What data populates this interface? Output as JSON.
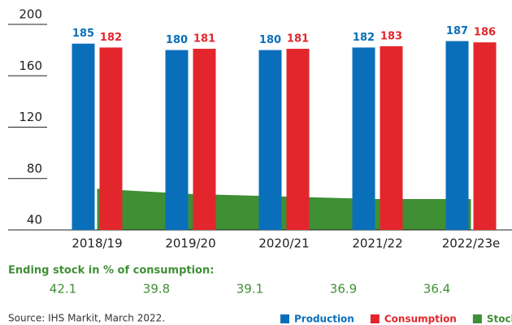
{
  "chart_data": {
    "type": "bar",
    "categories": [
      "2018/19",
      "2019/20",
      "2020/21",
      "2021/22",
      "2022/23e"
    ],
    "series": [
      {
        "name": "Production",
        "color": "#0a6fba",
        "values": [
          185,
          180,
          180,
          182,
          187
        ]
      },
      {
        "name": "Consumption",
        "color": "#e3262b",
        "values": [
          182,
          181,
          181,
          183,
          186
        ]
      },
      {
        "name": "Stock",
        "color": "#3f8f35",
        "type": "area",
        "values": [
          72,
          68,
          66,
          64,
          64
        ]
      }
    ],
    "ylim": [
      40,
      200
    ],
    "yticks": [
      40,
      80,
      120,
      160,
      200
    ],
    "stock_title": "Ending stock in % of consumption:",
    "stock_pct": {
      "values": [
        42.1,
        39.8,
        39.1,
        36.9,
        36.4
      ]
    },
    "source": "Source: IHS Markit, March 2022."
  }
}
